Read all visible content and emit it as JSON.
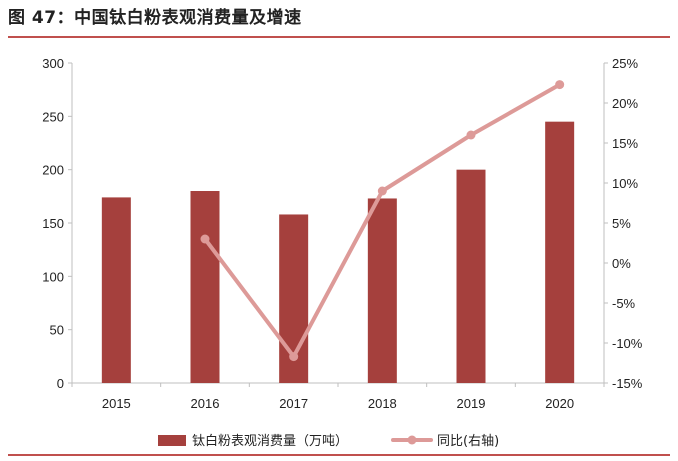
{
  "figure": {
    "title": "图 47：中国钛白粉表观消费量及增速"
  },
  "colors": {
    "bar": "#a5403d",
    "line": "#dd9a98",
    "rule": "#c0504d",
    "axis": "#bfbfbf"
  },
  "chart_data": {
    "type": "bar",
    "categories": [
      "2015",
      "2016",
      "2017",
      "2018",
      "2019",
      "2020"
    ],
    "series": [
      {
        "name": "钛白粉表观消费量（万吨）",
        "type": "bar",
        "axis": "left",
        "values": [
          174,
          180,
          158,
          173,
          200,
          245
        ]
      },
      {
        "name": "同比(右轴)",
        "type": "line",
        "axis": "right",
        "values": [
          null,
          3.0,
          -11.7,
          9.0,
          16.0,
          22.3
        ]
      }
    ],
    "y_left": {
      "ylim": [
        0,
        300
      ],
      "ticks": [
        "0",
        "50",
        "100",
        "150",
        "200",
        "250",
        "300"
      ]
    },
    "y_right": {
      "ylim": [
        -15,
        25
      ],
      "ticks": [
        "-15%",
        "-10%",
        "-5%",
        "0%",
        "5%",
        "10%",
        "15%",
        "20%",
        "25%"
      ]
    },
    "grid": false,
    "legend_position": "bottom"
  }
}
